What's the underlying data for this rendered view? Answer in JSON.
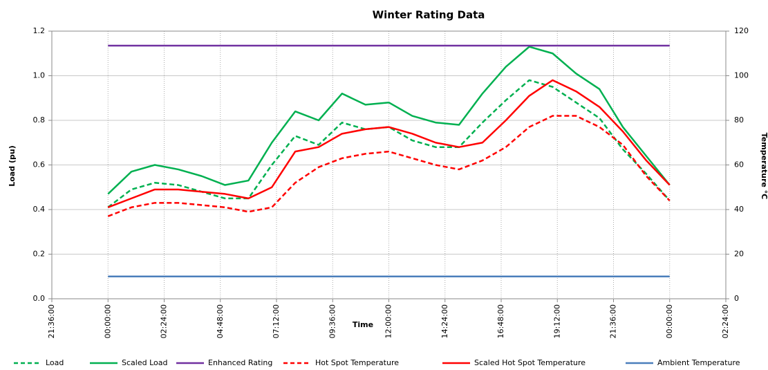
{
  "chart_data": {
    "type": "line",
    "title": "Winter Rating Data",
    "x_label": "Time",
    "y_label": "Load (pu)",
    "y2_label": "Temperature °C",
    "x": [
      0,
      1,
      2,
      3,
      4,
      5,
      6,
      7,
      8,
      9,
      10,
      11,
      12,
      13,
      14,
      15,
      16,
      17,
      18,
      19,
      20,
      21,
      22,
      23,
      24
    ],
    "xlim": [
      -2.4,
      26.4
    ],
    "xticks": [
      {
        "value": -2.4,
        "label": "21:36:00"
      },
      {
        "value": 0,
        "label": "00:00:00"
      },
      {
        "value": 2.4,
        "label": "02:24:00"
      },
      {
        "value": 4.8,
        "label": "04:48:00"
      },
      {
        "value": 7.2,
        "label": "07:12:00"
      },
      {
        "value": 9.6,
        "label": "09:36:00"
      },
      {
        "value": 12,
        "label": "12:00:00"
      },
      {
        "value": 14.4,
        "label": "14:24:00"
      },
      {
        "value": 16.8,
        "label": "16:48:00"
      },
      {
        "value": 19.2,
        "label": "19:12:00"
      },
      {
        "value": 21.6,
        "label": "21:36:00"
      },
      {
        "value": 24,
        "label": "00:00:00"
      },
      {
        "value": 26.4,
        "label": "02:24:00"
      }
    ],
    "ylim": [
      0,
      1.2
    ],
    "yticks": [
      {
        "value": 0,
        "label": "0.0"
      },
      0.2,
      0.4,
      0.6,
      0.8,
      {
        "value": 1,
        "label": "1.0"
      },
      {
        "value": 1.2,
        "label": "1.2"
      }
    ],
    "y2lim": [
      0,
      120
    ],
    "y2ticks": [
      0,
      20,
      40,
      60,
      80,
      100,
      120
    ],
    "grid": true,
    "legend": "bottom",
    "series": [
      {
        "name": "Load",
        "color": "#00b050",
        "dashed": true,
        "values": [
          0.41,
          0.49,
          0.52,
          0.51,
          0.48,
          0.45,
          0.45,
          0.6,
          0.73,
          0.69,
          0.79,
          0.76,
          0.77,
          0.71,
          0.68,
          0.68,
          0.79,
          0.89,
          0.98,
          0.95,
          0.88,
          0.81,
          0.67,
          0.56,
          0.44
        ]
      },
      {
        "name": "Scaled Load",
        "color": "#00b050",
        "dashed": false,
        "values": [
          0.47,
          0.57,
          0.6,
          0.58,
          0.55,
          0.51,
          0.53,
          0.7,
          0.84,
          0.8,
          0.92,
          0.87,
          0.88,
          0.82,
          0.79,
          0.78,
          0.92,
          1.04,
          1.13,
          1.1,
          1.01,
          0.94,
          0.77,
          0.64,
          0.51
        ]
      },
      {
        "name": "Enhanced Rating",
        "color": "#7030a0",
        "dashed": false,
        "values": [
          1.135,
          1.135,
          1.135,
          1.135,
          1.135,
          1.135,
          1.135,
          1.135,
          1.135,
          1.135,
          1.135,
          1.135,
          1.135,
          1.135,
          1.135,
          1.135,
          1.135,
          1.135,
          1.135,
          1.135,
          1.135,
          1.135,
          1.135,
          1.135,
          1.135
        ]
      },
      {
        "name": "Hot Spot Temperature",
        "color": "#ff0000",
        "dashed": true,
        "axis": "y2",
        "values": [
          37,
          41,
          43,
          43,
          42,
          41,
          39,
          41,
          52,
          59,
          63,
          65,
          66,
          63,
          60,
          58,
          62,
          68,
          77,
          82,
          82,
          77,
          69,
          55,
          44
        ]
      },
      {
        "name": "Scaled Hot Spot Temperature",
        "color": "#ff0000",
        "dashed": false,
        "axis": "y2",
        "values": [
          41,
          45,
          49,
          49,
          48,
          47,
          45,
          50,
          66,
          68,
          74,
          76,
          77,
          74,
          70,
          68,
          70,
          80,
          91,
          98,
          93,
          86,
          75,
          62,
          51
        ]
      },
      {
        "name": "Ambient Temperature",
        "color": "#4a7ebb",
        "dashed": false,
        "axis": "y2",
        "values": [
          10,
          10,
          10,
          10,
          10,
          10,
          10,
          10,
          10,
          10,
          10,
          10,
          10,
          10,
          10,
          10,
          10,
          10,
          10,
          10,
          10,
          10,
          10,
          10,
          10
        ]
      }
    ]
  }
}
